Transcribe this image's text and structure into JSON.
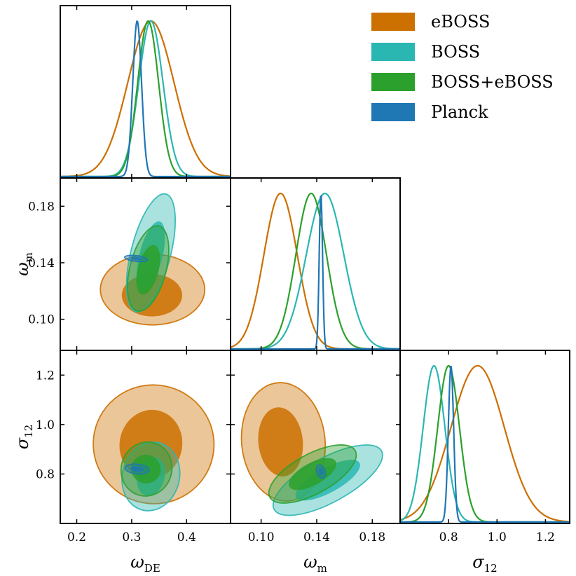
{
  "chart_data": {
    "type": "corner",
    "colors": {
      "eBOSS": "#cc7000",
      "BOSS": "#2ab7b2",
      "BOSS+eBOSS": "#2ca02c",
      "Planck": "#1f77b4"
    },
    "legend": [
      {
        "label": "eBOSS",
        "color": "#cc7000"
      },
      {
        "label": "BOSS",
        "color": "#2ab7b2"
      },
      {
        "label": "BOSS+eBOSS",
        "color": "#2ca02c"
      },
      {
        "label": "Planck",
        "color": "#1f77b4"
      }
    ],
    "parameters": [
      {
        "name": "omega_DE",
        "label_main": "ω",
        "label_sub": "DE",
        "range": [
          0.17,
          0.48
        ],
        "ticks": [
          0.2,
          0.3,
          0.4
        ],
        "tick_labels": [
          "0.2",
          "0.3",
          "0.4"
        ]
      },
      {
        "name": "omega_m",
        "label_main": "ω",
        "label_sub": "m",
        "range": [
          0.078,
          0.2
        ],
        "ticks": [
          0.1,
          0.14,
          0.18
        ],
        "tick_labels": [
          "0.10",
          "0.14",
          "0.18"
        ]
      },
      {
        "name": "sigma_12",
        "label_main": "σ",
        "label_sub": "12",
        "range": [
          0.6,
          1.3
        ],
        "ticks": [
          0.8,
          1.0,
          1.2
        ],
        "tick_labels": [
          "0.8",
          "1.0",
          "1.2"
        ]
      }
    ],
    "marginals": {
      "omega_DE": [
        {
          "dataset": "eBOSS",
          "mean": 0.335,
          "sigma": 0.042
        },
        {
          "dataset": "BOSS",
          "mean": 0.335,
          "sigma": 0.022
        },
        {
          "dataset": "BOSS+eBOSS",
          "mean": 0.33,
          "sigma": 0.019
        },
        {
          "dataset": "Planck",
          "mean": 0.31,
          "sigma": 0.008
        }
      ],
      "omega_m": [
        {
          "dataset": "eBOSS",
          "mean": 0.114,
          "sigma": 0.012
        },
        {
          "dataset": "BOSS",
          "mean": 0.146,
          "sigma": 0.0135
        },
        {
          "dataset": "BOSS+eBOSS",
          "mean": 0.136,
          "sigma": 0.011
        },
        {
          "dataset": "Planck",
          "mean": 0.143,
          "sigma": 0.0012
        }
      ],
      "sigma_12": [
        {
          "dataset": "eBOSS",
          "mean": 0.92,
          "sigma": 0.11
        },
        {
          "dataset": "BOSS",
          "mean": 0.74,
          "sigma": 0.045
        },
        {
          "dataset": "BOSS+eBOSS",
          "mean": 0.8,
          "sigma": 0.045
        },
        {
          "dataset": "Planck",
          "mean": 0.81,
          "sigma": 0.011
        }
      ]
    },
    "contours": [
      {
        "x": "omega_DE",
        "y": "omega_m",
        "ellipses": [
          {
            "dataset": "eBOSS",
            "level": "95",
            "cx": 0.338,
            "cy": 0.121,
            "rx": 0.095,
            "ry": 0.025,
            "angle": 0
          },
          {
            "dataset": "eBOSS",
            "level": "68",
            "cx": 0.337,
            "cy": 0.117,
            "rx": 0.055,
            "ry": 0.015,
            "angle": 0
          },
          {
            "dataset": "BOSS",
            "level": "95",
            "cx": 0.335,
            "cy": 0.147,
            "rx": 0.036,
            "ry": 0.043,
            "angle": -0.25
          },
          {
            "dataset": "BOSS",
            "level": "68",
            "cx": 0.335,
            "cy": 0.145,
            "rx": 0.021,
            "ry": 0.025,
            "angle": -0.25
          },
          {
            "dataset": "BOSS+eBOSS",
            "level": "95",
            "cx": 0.33,
            "cy": 0.136,
            "rx": 0.033,
            "ry": 0.031,
            "angle": -0.25
          },
          {
            "dataset": "BOSS+eBOSS",
            "level": "68",
            "cx": 0.33,
            "cy": 0.135,
            "rx": 0.019,
            "ry": 0.018,
            "angle": -0.25
          },
          {
            "dataset": "Planck",
            "level": "95",
            "cx": 0.308,
            "cy": 0.143,
            "rx": 0.021,
            "ry": 0.002,
            "angle": -0.12
          },
          {
            "dataset": "Planck",
            "level": "68",
            "cx": 0.308,
            "cy": 0.143,
            "rx": 0.01,
            "ry": 0.0011,
            "angle": -0.12
          }
        ]
      },
      {
        "x": "omega_DE",
        "y": "sigma_12",
        "ellipses": [
          {
            "dataset": "eBOSS",
            "level": "95",
            "cx": 0.34,
            "cy": 0.92,
            "rx": 0.11,
            "ry": 0.24,
            "angle": -0.2
          },
          {
            "dataset": "eBOSS",
            "level": "68",
            "cx": 0.335,
            "cy": 0.92,
            "rx": 0.057,
            "ry": 0.14,
            "angle": -0.2
          },
          {
            "dataset": "BOSS",
            "level": "95",
            "cx": 0.335,
            "cy": 0.79,
            "rx": 0.052,
            "ry": 0.14,
            "angle": -0.25
          },
          {
            "dataset": "BOSS",
            "level": "68",
            "cx": 0.335,
            "cy": 0.79,
            "rx": 0.025,
            "ry": 0.08,
            "angle": -0.25
          },
          {
            "dataset": "BOSS+eBOSS",
            "level": "95",
            "cx": 0.327,
            "cy": 0.82,
            "rx": 0.046,
            "ry": 0.11,
            "angle": -0.3
          },
          {
            "dataset": "BOSS+eBOSS",
            "level": "68",
            "cx": 0.326,
            "cy": 0.82,
            "rx": 0.027,
            "ry": 0.058,
            "angle": -0.3
          },
          {
            "dataset": "Planck",
            "level": "95",
            "cx": 0.31,
            "cy": 0.82,
            "rx": 0.022,
            "ry": 0.02,
            "angle": -0.1
          },
          {
            "dataset": "Planck",
            "level": "68",
            "cx": 0.31,
            "cy": 0.82,
            "rx": 0.012,
            "ry": 0.011,
            "angle": -0.1
          }
        ]
      },
      {
        "x": "omega_m",
        "y": "sigma_12",
        "ellipses": [
          {
            "dataset": "eBOSS",
            "level": "95",
            "cx": 0.116,
            "cy": 0.93,
            "rx": 0.03,
            "ry": 0.24,
            "angle": 0.1
          },
          {
            "dataset": "eBOSS",
            "level": "68",
            "cx": 0.114,
            "cy": 0.93,
            "rx": 0.016,
            "ry": 0.14,
            "angle": 0.1
          },
          {
            "dataset": "BOSS",
            "level": "95",
            "cx": 0.148,
            "cy": 0.775,
            "rx": 0.044,
            "ry": 0.09,
            "angle": 0.5
          },
          {
            "dataset": "BOSS",
            "level": "68",
            "cx": 0.148,
            "cy": 0.775,
            "rx": 0.026,
            "ry": 0.05,
            "angle": 0.5
          },
          {
            "dataset": "BOSS+eBOSS",
            "level": "95",
            "cx": 0.137,
            "cy": 0.8,
            "rx": 0.035,
            "ry": 0.08,
            "angle": 0.5
          },
          {
            "dataset": "BOSS+eBOSS",
            "level": "68",
            "cx": 0.137,
            "cy": 0.8,
            "rx": 0.019,
            "ry": 0.045,
            "angle": 0.5
          },
          {
            "dataset": "Planck",
            "level": "95",
            "cx": 0.143,
            "cy": 0.81,
            "rx": 0.003,
            "ry": 0.028,
            "angle": 0.35
          },
          {
            "dataset": "Planck",
            "level": "68",
            "cx": 0.143,
            "cy": 0.81,
            "rx": 0.0016,
            "ry": 0.015,
            "angle": 0.35
          }
        ]
      }
    ]
  }
}
